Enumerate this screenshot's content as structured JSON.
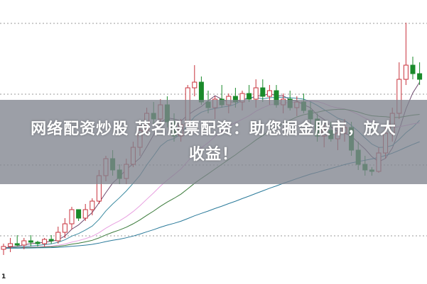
{
  "headline": {
    "line1": "网络配资炒股 茂名股票配资：助您掘金股市，放大",
    "line2": "收益！"
  },
  "corner_label": "1",
  "colors": {
    "up": "#c8323c",
    "down": "#1a8a2a",
    "grid": "#999999",
    "ma5": "#6e4a6e",
    "ma10": "#3a8aa0",
    "ma20": "#e8a0e0",
    "ma30": "#3a7a3a",
    "ma60": "#2a7a9a"
  },
  "chart_data": {
    "type": "candlestick",
    "title": "",
    "grid": "horizontal dotted",
    "candles": [
      [
        12,
        14,
        10,
        13
      ],
      [
        13,
        16,
        11,
        14
      ],
      [
        14,
        17,
        13,
        13.5
      ],
      [
        13.5,
        16,
        12,
        15
      ],
      [
        15,
        17,
        13,
        14.5
      ],
      [
        14.5,
        15,
        13,
        14
      ],
      [
        14,
        16,
        13,
        15.5
      ],
      [
        15.5,
        17,
        14,
        15
      ],
      [
        15,
        20,
        14,
        18
      ],
      [
        18,
        23,
        16,
        21
      ],
      [
        21,
        27,
        19,
        26
      ],
      [
        26,
        26,
        22,
        23
      ],
      [
        23,
        28,
        22,
        26
      ],
      [
        26,
        30,
        24,
        29
      ],
      [
        29,
        40,
        28,
        38
      ],
      [
        38,
        45,
        36,
        44
      ],
      [
        44,
        47,
        38,
        40
      ],
      [
        40,
        42,
        35,
        37
      ],
      [
        37,
        44,
        35,
        42
      ],
      [
        42,
        50,
        41,
        48
      ],
      [
        48,
        56,
        45,
        54
      ],
      [
        54,
        62,
        52,
        60
      ],
      [
        60,
        64,
        56,
        58
      ],
      [
        58,
        65,
        56,
        63
      ],
      [
        63,
        66,
        55,
        57
      ],
      [
        57,
        60,
        50,
        52
      ],
      [
        52,
        58,
        50,
        56
      ],
      [
        56,
        70,
        55,
        69
      ],
      [
        69,
        77,
        66,
        71
      ],
      [
        71,
        73,
        63,
        64
      ],
      [
        64,
        68,
        60,
        62
      ],
      [
        62,
        66,
        58,
        65
      ],
      [
        65,
        70,
        62,
        63
      ],
      [
        63,
        67,
        60,
        66
      ],
      [
        66,
        69,
        62,
        64
      ],
      [
        64,
        68,
        61,
        67
      ],
      [
        67,
        70,
        64,
        65
      ],
      [
        65,
        72,
        62,
        69
      ],
      [
        69,
        72,
        64,
        66
      ],
      [
        66,
        70,
        63,
        68
      ],
      [
        68,
        70,
        62,
        63
      ],
      [
        63,
        67,
        60,
        65
      ],
      [
        65,
        68,
        61,
        62
      ],
      [
        62,
        66,
        59,
        64
      ],
      [
        64,
        67,
        60,
        61
      ],
      [
        61,
        64,
        56,
        58
      ],
      [
        58,
        60,
        50,
        52
      ],
      [
        52,
        56,
        48,
        54
      ],
      [
        54,
        57,
        50,
        51
      ],
      [
        51,
        55,
        47,
        53
      ],
      [
        53,
        58,
        50,
        55
      ],
      [
        55,
        57,
        45,
        47
      ],
      [
        47,
        50,
        40,
        42
      ],
      [
        42,
        45,
        38,
        40
      ],
      [
        40,
        41,
        38,
        39.5
      ],
      [
        39.5,
        48,
        39,
        46
      ],
      [
        46,
        55,
        44,
        53
      ],
      [
        53,
        62,
        50,
        60
      ],
      [
        60,
        78,
        58,
        72
      ],
      [
        72,
        92,
        70,
        77
      ],
      [
        77,
        80,
        72,
        74
      ],
      [
        74,
        78,
        70,
        72
      ]
    ],
    "moving_averages": [
      5,
      10,
      20,
      30,
      60
    ]
  }
}
